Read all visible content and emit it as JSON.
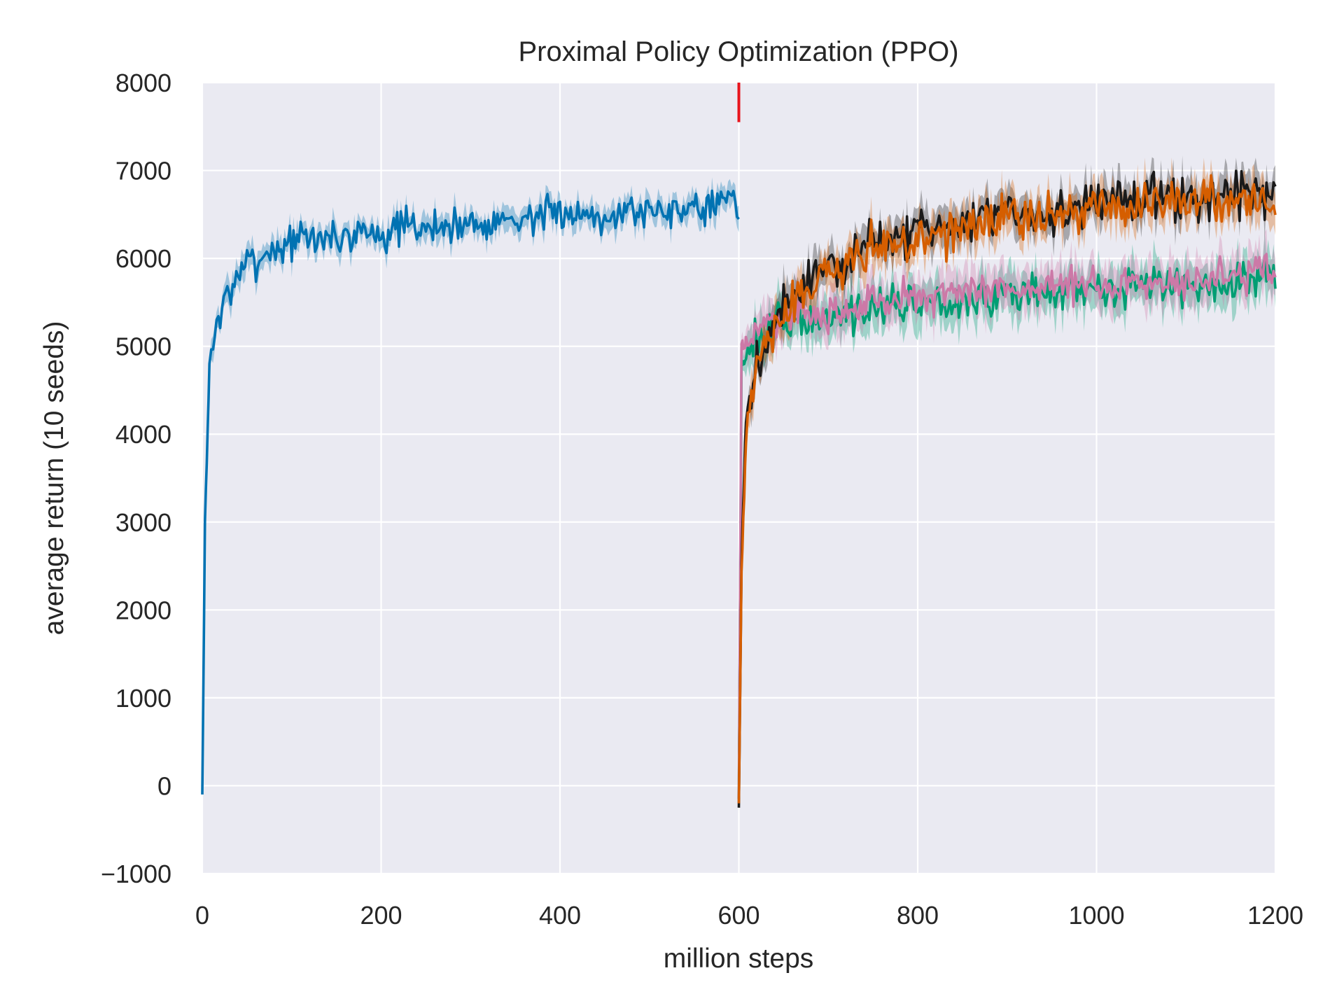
{
  "chart_data": {
    "type": "line",
    "title": "Proximal Policy Optimization (PPO)",
    "xlabel": "million steps",
    "ylabel": "average return (10 seeds)",
    "xlim": [
      0,
      1200
    ],
    "ylim": [
      -1000,
      8000
    ],
    "xticks": [
      0,
      200,
      400,
      600,
      800,
      1000,
      1200
    ],
    "xtick_labels": [
      "0",
      "200",
      "400",
      "600",
      "800",
      "1000",
      "1200"
    ],
    "yticks": [
      -1000,
      0,
      1000,
      2000,
      3000,
      4000,
      5000,
      6000,
      7000,
      8000
    ],
    "ytick_labels": [
      "−1000",
      "0",
      "1000",
      "2000",
      "3000",
      "4000",
      "5000",
      "6000",
      "7000",
      "8000"
    ],
    "grid": true,
    "background_color": "#EAEAF2",
    "grid_color": "#FFFFFF",
    "shaded_band": "mean ± spread across 10 seeds",
    "marker": {
      "x": 600,
      "y_range": [
        7550,
        8000
      ],
      "color": "#E8141C"
    },
    "series": [
      {
        "color": "#0072B2",
        "noise": 150,
        "band": 130,
        "points": [
          [
            0,
            -100
          ],
          [
            3,
            3000
          ],
          [
            8,
            4800
          ],
          [
            15,
            5200
          ],
          [
            25,
            5500
          ],
          [
            40,
            5850
          ],
          [
            60,
            6000
          ],
          [
            80,
            6100
          ],
          [
            100,
            6200
          ],
          [
            150,
            6250
          ],
          [
            200,
            6300
          ],
          [
            250,
            6350
          ],
          [
            300,
            6400
          ],
          [
            350,
            6450
          ],
          [
            400,
            6500
          ],
          [
            450,
            6520
          ],
          [
            500,
            6550
          ],
          [
            550,
            6600
          ],
          [
            597,
            6650
          ],
          [
            600,
            6450
          ]
        ]
      },
      {
        "color": "#1A1A1A",
        "noise": 190,
        "band": 180,
        "points": [
          [
            600,
            -250
          ],
          [
            603,
            2500
          ],
          [
            608,
            4200
          ],
          [
            620,
            4800
          ],
          [
            640,
            5300
          ],
          [
            660,
            5600
          ],
          [
            700,
            5900
          ],
          [
            750,
            6150
          ],
          [
            800,
            6300
          ],
          [
            850,
            6400
          ],
          [
            900,
            6500
          ],
          [
            950,
            6550
          ],
          [
            1000,
            6600
          ],
          [
            1050,
            6650
          ],
          [
            1100,
            6700
          ],
          [
            1150,
            6750
          ],
          [
            1200,
            6750
          ]
        ]
      },
      {
        "color": "#D55E00",
        "noise": 190,
        "band": 200,
        "points": [
          [
            600,
            -200
          ],
          [
            603,
            2400
          ],
          [
            608,
            4000
          ],
          [
            620,
            4700
          ],
          [
            640,
            5200
          ],
          [
            660,
            5500
          ],
          [
            700,
            5850
          ],
          [
            750,
            6100
          ],
          [
            800,
            6250
          ],
          [
            850,
            6350
          ],
          [
            900,
            6450
          ],
          [
            950,
            6500
          ],
          [
            1000,
            6550
          ],
          [
            1050,
            6600
          ],
          [
            1100,
            6650
          ],
          [
            1150,
            6650
          ],
          [
            1200,
            6650
          ]
        ]
      },
      {
        "color": "#009E73",
        "noise": 170,
        "band": 220,
        "points": [
          [
            600,
            -150
          ],
          [
            603,
            4800
          ],
          [
            615,
            5050
          ],
          [
            640,
            5200
          ],
          [
            700,
            5350
          ],
          [
            750,
            5450
          ],
          [
            800,
            5500
          ],
          [
            900,
            5580
          ],
          [
            1000,
            5650
          ],
          [
            1100,
            5700
          ],
          [
            1200,
            5800
          ]
        ]
      },
      {
        "color": "#CC79A7",
        "noise": 160,
        "band": 220,
        "points": [
          [
            600,
            -150
          ],
          [
            603,
            5000
          ],
          [
            615,
            5150
          ],
          [
            640,
            5300
          ],
          [
            700,
            5400
          ],
          [
            750,
            5500
          ],
          [
            800,
            5550
          ],
          [
            900,
            5650
          ],
          [
            1000,
            5700
          ],
          [
            1100,
            5750
          ],
          [
            1200,
            5850
          ]
        ]
      }
    ]
  }
}
